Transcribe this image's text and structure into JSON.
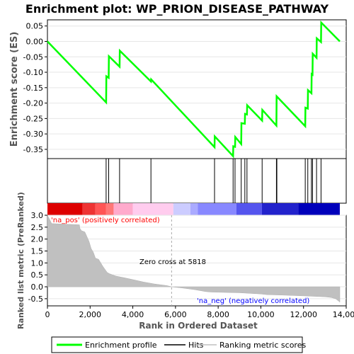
{
  "chart_data": [
    {
      "type": "line",
      "title": "Enrichment plot: WP_PRION_DISEASE_PATHWAY",
      "ylabel": "Enrichment score (ES)",
      "ylim": [
        -0.38,
        0.07
      ],
      "yticks": [
        0.05,
        0.0,
        -0.05,
        -0.1,
        -0.15,
        -0.2,
        -0.25,
        -0.3,
        -0.35
      ],
      "ytick_labels": [
        "0.05",
        "0.00",
        "-0.05",
        "-0.10",
        "-0.15",
        "-0.20",
        "-0.25",
        "-0.30",
        "-0.35"
      ],
      "grid": true,
      "series": [
        {
          "name": "Enrichment profile",
          "color": "#00ff00",
          "x": [
            0,
            2750,
            2760,
            2870,
            2880,
            3380,
            3390,
            4850,
            4860,
            7830,
            7840,
            8700,
            8710,
            8790,
            8800,
            9080,
            9090,
            9250,
            9260,
            9350,
            9360,
            10060,
            10070,
            10730,
            10740,
            12080,
            12090,
            12200,
            12210,
            12370,
            12380,
            12420,
            12430,
            12610,
            12620,
            12820,
            12830,
            13700
          ],
          "y": [
            0.0,
            -0.198,
            -0.113,
            -0.118,
            -0.048,
            -0.082,
            -0.03,
            -0.13,
            -0.123,
            -0.343,
            -0.308,
            -0.372,
            -0.34,
            -0.342,
            -0.31,
            -0.333,
            -0.265,
            -0.267,
            -0.235,
            -0.237,
            -0.207,
            -0.257,
            -0.222,
            -0.273,
            -0.178,
            -0.275,
            -0.215,
            -0.218,
            -0.158,
            -0.168,
            -0.106,
            -0.108,
            -0.04,
            -0.053,
            0.01,
            -0.002,
            0.061,
            0.0
          ]
        }
      ]
    },
    {
      "type": "scatter",
      "name": "hits",
      "series": [
        {
          "name": "Hits",
          "x": [
            2750,
            2870,
            3380,
            4850,
            7830,
            8700,
            8790,
            9080,
            9250,
            9350,
            10060,
            10730,
            10750,
            12080,
            12200,
            12370,
            12420,
            12610,
            12820
          ]
        }
      ]
    },
    {
      "type": "heatmap",
      "name": "rank-color-bar",
      "colors": [
        "#dd0000",
        "#ee3333",
        "#ff5555",
        "#ff7777",
        "#ffaacc",
        "#ffccee",
        "#ccccff",
        "#aaaaff",
        "#8888ff",
        "#5555ee",
        "#2222cc",
        "#0000bb"
      ],
      "breaks": [
        0,
        1650,
        2250,
        2750,
        3100,
        4000,
        5900,
        6700,
        7050,
        8850,
        10050,
        11750,
        13700
      ]
    },
    {
      "type": "area",
      "ylabel": "Ranked list metric (PreRanked)",
      "xlabel": "Rank in Ordered Dataset",
      "ylim": [
        -0.8,
        3.0
      ],
      "yticks": [
        3.0,
        2.5,
        2.0,
        1.5,
        1.0,
        0.5,
        0.0,
        -0.5
      ],
      "ytick_labels": [
        "3.0",
        "2.5",
        "2.0",
        "1.5",
        "1.0",
        "0.5",
        "0.0",
        "-0.5"
      ],
      "xlim": [
        0,
        14000
      ],
      "xticks": [
        0,
        2000,
        4000,
        6000,
        8000,
        10000,
        12000,
        14000
      ],
      "xtick_labels": [
        "0",
        "2,000",
        "4,000",
        "6,000",
        "8,000",
        "10,000",
        "12,000",
        "14,000"
      ],
      "zero_cross": 5818,
      "series": [
        {
          "name": "Ranking metric scores",
          "color": "#c0c0c0",
          "x": [
            0,
            200,
            1500,
            1520,
            1600,
            1750,
            1850,
            1950,
            2050,
            2150,
            2250,
            2400,
            2600,
            2800,
            2900,
            3200,
            3600,
            4000,
            4500,
            5000,
            5600,
            5818,
            6300,
            6900,
            7400,
            7650,
            8000,
            9000,
            10000,
            10300,
            11000,
            12000,
            13000,
            13300,
            13500,
            13650,
            13700
          ],
          "y": [
            3.0,
            2.65,
            2.6,
            2.45,
            2.35,
            2.3,
            2.1,
            1.9,
            1.6,
            1.45,
            1.2,
            1.15,
            0.85,
            0.6,
            0.55,
            0.45,
            0.38,
            0.3,
            0.2,
            0.12,
            0.05,
            0.0,
            -0.05,
            -0.12,
            -0.2,
            -0.22,
            -0.23,
            -0.25,
            -0.3,
            -0.33,
            -0.35,
            -0.38,
            -0.42,
            -0.45,
            -0.5,
            -0.6,
            -0.65
          ]
        }
      ],
      "annotations": {
        "pos_label": "'na_pos' (positively correlated)",
        "neg_label": "'na_neg' (negatively correlated)",
        "zero_label": "Zero cross at 5818"
      }
    }
  ],
  "legend": {
    "items": [
      {
        "label": "Enrichment profile",
        "color": "#00ff00"
      },
      {
        "label": "Hits",
        "color": "#000000"
      },
      {
        "label": "Ranking metric scores",
        "color": "#c0c0c0"
      }
    ]
  }
}
